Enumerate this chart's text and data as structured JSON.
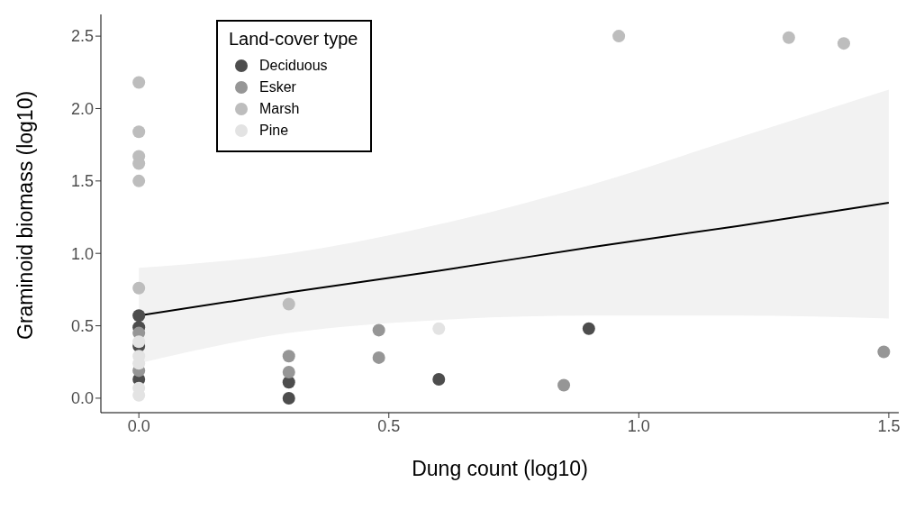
{
  "chart_data": {
    "type": "scatter",
    "xlabel": "Dung count (log10)",
    "ylabel": "Graminoid biomass (log10)",
    "legend_title": "Land-cover type",
    "legend": "top left",
    "marker": "circle",
    "xlim": [
      -0.076,
      1.52
    ],
    "xticks": [
      {
        "value": 0,
        "label": "0.0"
      },
      0.5,
      {
        "value": 1,
        "label": "1.0"
      },
      1.5
    ],
    "ylim": [
      -0.1,
      2.65
    ],
    "yticks": [
      {
        "value": 0,
        "label": "0.0"
      },
      0.5,
      {
        "value": 1,
        "label": "1.0"
      },
      1.5,
      {
        "value": 2,
        "label": "2.0"
      },
      2.5
    ],
    "series": [
      {
        "name": "Deciduous",
        "color": "#4d4d4d",
        "x": [
          0,
          0,
          0,
          0,
          0.3,
          0.3,
          0.6,
          0.9
        ],
        "values": [
          0.57,
          0.49,
          0.36,
          0.13,
          0.11,
          0.0,
          0.13,
          0.48
        ]
      },
      {
        "name": "Esker",
        "color": "#969696",
        "x": [
          0,
          0,
          0.3,
          0.3,
          0.48,
          0.48,
          0.85,
          1.49
        ],
        "values": [
          0.45,
          0.19,
          0.29,
          0.18,
          0.47,
          0.28,
          0.09,
          0.32
        ]
      },
      {
        "name": "Marsh",
        "color": "#bdbdbd",
        "x": [
          0,
          0,
          0,
          0,
          0,
          0,
          0.3,
          0.96,
          1.3,
          1.41
        ],
        "values": [
          2.18,
          1.84,
          1.67,
          1.62,
          1.5,
          0.76,
          0.65,
          2.5,
          2.49,
          2.45
        ]
      },
      {
        "name": "Pine",
        "color": "#e3e3e3",
        "x": [
          0,
          0,
          0,
          0,
          0,
          0.6
        ],
        "values": [
          0.39,
          0.29,
          0.24,
          0.07,
          0.02,
          0.48
        ]
      },
      {
        "type": "line",
        "marker": "none",
        "color": "#000000",
        "x": [
          0,
          0.3,
          0.6,
          0.9,
          1.2,
          1.5
        ],
        "values": [
          0.57,
          0.73,
          0.88,
          1.04,
          1.19,
          1.35
        ],
        "lower": [
          0.24,
          0.45,
          0.54,
          0.57,
          0.57,
          0.55
        ],
        "upper": [
          0.9,
          1.0,
          1.2,
          1.47,
          1.8,
          2.13
        ]
      }
    ]
  }
}
